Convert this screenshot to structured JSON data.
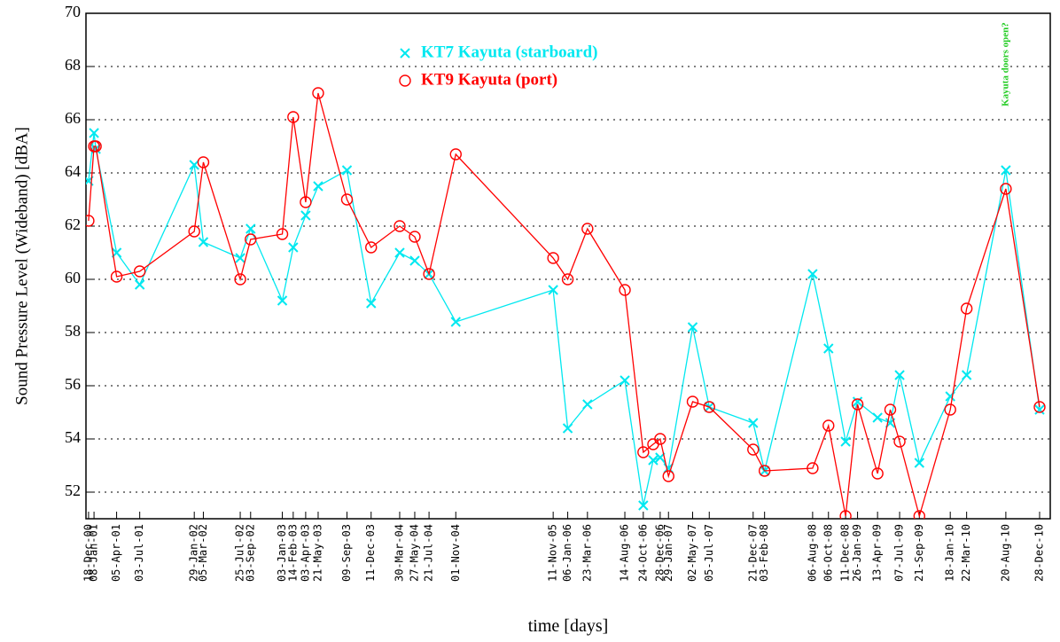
{
  "chart_data": {
    "type": "line",
    "y_label": "Sound Pressure Level (Wideband) [dBA]",
    "x_label": "time [days]",
    "annotation": "Kayuta doors open?",
    "xlim": [
      "2000-12-08",
      "2011-02-07"
    ],
    "ylim": [
      51,
      70
    ],
    "yticks": [
      52,
      54,
      56,
      58,
      60,
      62,
      64,
      66,
      68,
      70
    ],
    "grid": true,
    "legend": "top",
    "xticks": [
      {
        "value": "2000-12-18",
        "label": "18-Dec-00"
      },
      {
        "value": "2001-01-08",
        "label": "08-Jan-01"
      },
      {
        "value": "2001-04-05",
        "label": "05-Apr-01"
      },
      {
        "value": "2001-07-03",
        "label": "03-Jul-01"
      },
      {
        "value": "2002-01-29",
        "label": "29-Jan-02"
      },
      {
        "value": "2002-03-05",
        "label": "05-Mar-02"
      },
      {
        "value": "2002-07-25",
        "label": "25-Jul-02"
      },
      {
        "value": "2002-09-03",
        "label": "03-Sep-02"
      },
      {
        "value": "2003-01-03",
        "label": "03-Jan-03"
      },
      {
        "value": "2003-02-14",
        "label": "14-Feb-03"
      },
      {
        "value": "2003-04-03",
        "label": "03-Apr-03"
      },
      {
        "value": "2003-05-21",
        "label": "21-May-03"
      },
      {
        "value": "2003-09-09",
        "label": "09-Sep-03"
      },
      {
        "value": "2003-12-11",
        "label": "11-Dec-03"
      },
      {
        "value": "2004-03-30",
        "label": "30-Mar-04"
      },
      {
        "value": "2004-05-27",
        "label": "27-May-04"
      },
      {
        "value": "2004-07-21",
        "label": "21-Jul-04"
      },
      {
        "value": "2004-11-01",
        "label": "01-Nov-04"
      },
      {
        "value": "2005-11-11",
        "label": "11-Nov-05"
      },
      {
        "value": "2006-01-06",
        "label": "06-Jan-06"
      },
      {
        "value": "2006-03-23",
        "label": "23-Mar-06"
      },
      {
        "value": "2006-08-14",
        "label": "14-Aug-06"
      },
      {
        "value": "2006-10-24",
        "label": "24-Oct-06"
      },
      {
        "value": "2006-12-28",
        "label": "28-Dec-06"
      },
      {
        "value": "2007-01-29",
        "label": "29-Jan-07"
      },
      {
        "value": "2007-05-02",
        "label": "02-May-07"
      },
      {
        "value": "2007-07-05",
        "label": "05-Jul-07"
      },
      {
        "value": "2007-12-21",
        "label": "21-Dec-07"
      },
      {
        "value": "2008-02-03",
        "label": "03-Feb-08"
      },
      {
        "value": "2008-08-06",
        "label": "06-Aug-08"
      },
      {
        "value": "2008-10-06",
        "label": "06-Oct-08"
      },
      {
        "value": "2008-12-11",
        "label": "11-Dec-08"
      },
      {
        "value": "2009-01-26",
        "label": "26-Jan-09"
      },
      {
        "value": "2009-04-13",
        "label": "13-Apr-09"
      },
      {
        "value": "2009-07-07",
        "label": "07-Jul-09"
      },
      {
        "value": "2009-09-21",
        "label": "21-Sep-09"
      },
      {
        "value": "2010-01-18",
        "label": "18-Jan-10"
      },
      {
        "value": "2010-03-22",
        "label": "22-Mar-10"
      },
      {
        "value": "2010-08-20",
        "label": "20-Aug-10"
      },
      {
        "value": "2010-12-28",
        "label": "28-Dec-10"
      }
    ],
    "series": [
      {
        "name": "KT7 Kayuta (starboard)",
        "color": "#00e8f0",
        "marker": "x",
        "x": [
          "2000-12-18",
          "2001-01-08",
          "2001-01-15",
          "2001-04-05",
          "2001-07-03",
          "2002-01-29",
          "2002-03-05",
          "2002-07-25",
          "2002-09-03",
          "2003-01-03",
          "2003-02-14",
          "2003-04-03",
          "2003-05-21",
          "2003-09-09",
          "2003-12-11",
          "2004-03-30",
          "2004-05-27",
          "2004-07-21",
          "2004-11-01",
          "2005-11-11",
          "2006-01-06",
          "2006-03-23",
          "2006-08-14",
          "2006-10-24",
          "2006-12-01",
          "2006-12-28",
          "2007-01-29",
          "2007-05-02",
          "2007-07-05",
          "2007-12-21",
          "2008-02-03",
          "2008-08-06",
          "2008-10-06",
          "2008-12-11",
          "2009-01-26",
          "2009-04-13",
          "2009-06-01",
          "2009-07-07",
          "2009-09-21",
          "2010-01-18",
          "2010-03-22",
          "2010-08-20",
          "2010-12-28"
        ],
        "values": [
          63.7,
          65.5,
          64.9,
          61.0,
          59.8,
          64.3,
          61.4,
          60.8,
          61.9,
          59.2,
          61.2,
          62.4,
          63.5,
          64.1,
          59.1,
          61.0,
          60.7,
          60.2,
          58.4,
          59.6,
          54.4,
          55.3,
          56.2,
          51.5,
          53.2,
          53.3,
          52.9,
          58.2,
          55.2,
          54.6,
          52.8,
          60.2,
          57.4,
          53.9,
          55.4,
          54.8,
          54.6,
          56.4,
          53.1,
          55.6,
          56.4,
          64.1,
          55.1
        ]
      },
      {
        "name": "KT9 Kayuta (port)",
        "color": "#ff0000",
        "marker": "o",
        "x": [
          "2000-12-18",
          "2001-01-08",
          "2001-01-15",
          "2001-04-05",
          "2001-07-03",
          "2002-01-29",
          "2002-03-05",
          "2002-07-25",
          "2002-09-03",
          "2003-01-03",
          "2003-02-14",
          "2003-04-03",
          "2003-05-21",
          "2003-09-09",
          "2003-12-11",
          "2004-03-30",
          "2004-05-27",
          "2004-07-21",
          "2004-11-01",
          "2005-11-11",
          "2006-01-06",
          "2006-03-23",
          "2006-08-14",
          "2006-10-24",
          "2006-12-01",
          "2006-12-28",
          "2007-01-29",
          "2007-05-02",
          "2007-07-05",
          "2007-12-21",
          "2008-02-03",
          "2008-08-06",
          "2008-10-06",
          "2008-12-11",
          "2009-01-26",
          "2009-04-13",
          "2009-06-01",
          "2009-07-07",
          "2009-09-21",
          "2010-01-18",
          "2010-03-22",
          "2010-08-20",
          "2010-12-28"
        ],
        "values": [
          62.2,
          65.0,
          65.0,
          60.1,
          60.3,
          61.8,
          64.4,
          60.0,
          61.5,
          61.7,
          66.1,
          62.9,
          67.0,
          63.0,
          61.2,
          62.0,
          61.6,
          60.2,
          64.7,
          60.8,
          60.0,
          61.9,
          59.6,
          53.5,
          53.8,
          54.0,
          52.6,
          55.4,
          55.2,
          53.6,
          52.8,
          52.9,
          54.5,
          51.1,
          55.3,
          52.7,
          55.1,
          53.9,
          51.1,
          55.1,
          58.9,
          63.4,
          55.2
        ]
      }
    ]
  }
}
